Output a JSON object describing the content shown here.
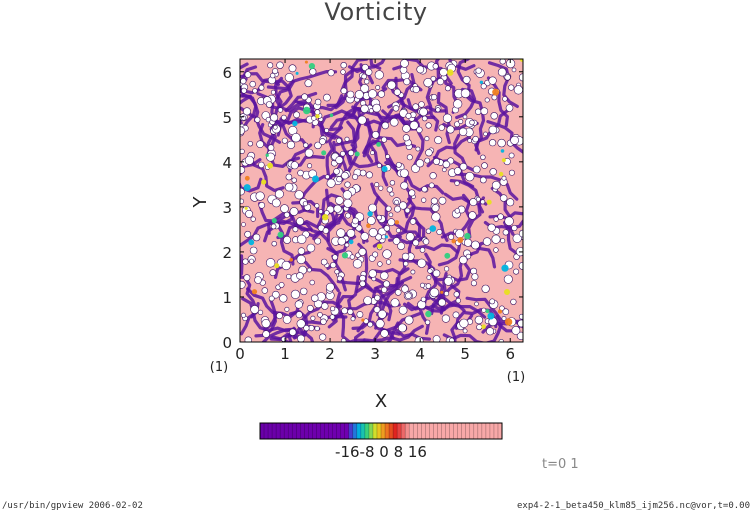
{
  "chart_data": {
    "type": "heatmap",
    "title": "Vorticity",
    "xlabel": "X",
    "ylabel": "Y",
    "xlim": [
      0,
      6.2832
    ],
    "ylim": [
      0,
      6.2832
    ],
    "x_ticks": [
      "0",
      "1",
      "2",
      "3",
      "4",
      "5",
      "6"
    ],
    "y_ticks": [
      "0",
      "1",
      "2",
      "3",
      "4",
      "5",
      "6"
    ],
    "x_unit": "(1)",
    "y_unit": "(1)",
    "colorbar": {
      "label": "-16-8 0 8 16",
      "range": [
        -16,
        16
      ],
      "colors": [
        "#6a00a8",
        "#3a4fd8",
        "#00b4e0",
        "#30d080",
        "#e8e020",
        "#e02020",
        "#f8a8a8"
      ]
    },
    "field_style": "dense small-scale vortices"
  },
  "footer": {
    "left": "/usr/bin/gpview  2006-02-02",
    "right": "exp4-2-1_beta450_klm85_ijm256.nc@vor,t=0.00"
  },
  "time_label": "t=0 1"
}
